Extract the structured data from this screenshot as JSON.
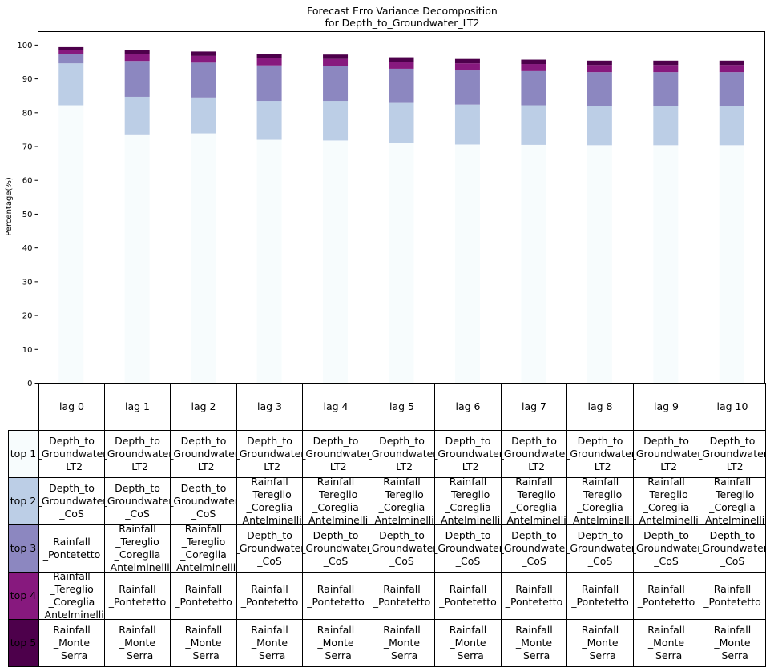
{
  "chart_data": {
    "type": "bar",
    "stacked": true,
    "title": "Forecast Erro Variance Decomposition\nfor Depth_to_Groundwater_LT2",
    "xlabel": "",
    "ylabel": "Percentage(%)",
    "ylim": [
      0,
      104
    ],
    "yticks": [
      0,
      10,
      20,
      30,
      40,
      50,
      60,
      70,
      80,
      90,
      100
    ],
    "grid": false,
    "categories": [
      "lag 0",
      "lag 1",
      "lag 2",
      "lag 3",
      "lag 4",
      "lag 5",
      "lag 6",
      "lag 7",
      "lag 8",
      "lag 9",
      "lag 10"
    ],
    "series": [
      {
        "name": "top 1",
        "color": "#f7fcfd",
        "values": [
          82.2,
          73.6,
          73.9,
          72.0,
          71.8,
          71.1,
          70.6,
          70.5,
          70.4,
          70.4,
          70.4
        ]
      },
      {
        "name": "top 2",
        "color": "#bccee6",
        "values": [
          12.4,
          11.1,
          10.6,
          11.5,
          11.7,
          11.8,
          11.8,
          11.7,
          11.6,
          11.6,
          11.6
        ]
      },
      {
        "name": "top 3",
        "color": "#8c87c0",
        "values": [
          2.8,
          10.6,
          10.3,
          10.5,
          10.3,
          10.1,
          10.1,
          10.1,
          10.0,
          10.0,
          10.0
        ]
      },
      {
        "name": "top 4",
        "color": "#87197e",
        "values": [
          1.2,
          2.0,
          2.0,
          2.1,
          2.1,
          2.1,
          2.1,
          2.1,
          2.1,
          2.1,
          2.1
        ]
      },
      {
        "name": "top 5",
        "color": "#4d004b",
        "values": [
          0.8,
          1.2,
          1.3,
          1.3,
          1.3,
          1.3,
          1.3,
          1.3,
          1.3,
          1.3,
          1.3
        ]
      }
    ]
  },
  "table": {
    "row_labels": [
      "top 1",
      "top 2",
      "top 3",
      "top 4",
      "top 5"
    ],
    "rows": [
      [
        "Depth_to\n_Groundwater\n_LT2",
        "Depth_to\n_Groundwater\n_LT2",
        "Depth_to\n_Groundwater\n_LT2",
        "Depth_to\n_Groundwater\n_LT2",
        "Depth_to\n_Groundwater\n_LT2",
        "Depth_to\n_Groundwater\n_LT2",
        "Depth_to\n_Groundwater\n_LT2",
        "Depth_to\n_Groundwater\n_LT2",
        "Depth_to\n_Groundwater\n_LT2",
        "Depth_to\n_Groundwater\n_LT2",
        "Depth_to\n_Groundwater\n_LT2"
      ],
      [
        "Depth_to\n_Groundwater\n_CoS",
        "Depth_to\n_Groundwater\n_CoS",
        "Depth_to\n_Groundwater\n_CoS",
        "Rainfall\n_Tereglio\n_Coreglia\n_Antelminelli",
        "Rainfall\n_Tereglio\n_Coreglia\n_Antelminelli",
        "Rainfall\n_Tereglio\n_Coreglia\n_Antelminelli",
        "Rainfall\n_Tereglio\n_Coreglia\n_Antelminelli",
        "Rainfall\n_Tereglio\n_Coreglia\n_Antelminelli",
        "Rainfall\n_Tereglio\n_Coreglia\n_Antelminelli",
        "Rainfall\n_Tereglio\n_Coreglia\n_Antelminelli",
        "Rainfall\n_Tereglio\n_Coreglia\n_Antelminelli"
      ],
      [
        "Rainfall\n_Pontetetto",
        "Rainfall\n_Tereglio\n_Coreglia\n_Antelminelli",
        "Rainfall\n_Tereglio\n_Coreglia\n_Antelminelli",
        "Depth_to\n_Groundwater\n_CoS",
        "Depth_to\n_Groundwater\n_CoS",
        "Depth_to\n_Groundwater\n_CoS",
        "Depth_to\n_Groundwater\n_CoS",
        "Depth_to\n_Groundwater\n_CoS",
        "Depth_to\n_Groundwater\n_CoS",
        "Depth_to\n_Groundwater\n_CoS",
        "Depth_to\n_Groundwater\n_CoS"
      ],
      [
        "Rainfall\n_Tereglio\n_Coreglia\n_Antelminelli",
        "Rainfall\n_Pontetetto",
        "Rainfall\n_Pontetetto",
        "Rainfall\n_Pontetetto",
        "Rainfall\n_Pontetetto",
        "Rainfall\n_Pontetetto",
        "Rainfall\n_Pontetetto",
        "Rainfall\n_Pontetetto",
        "Rainfall\n_Pontetetto",
        "Rainfall\n_Pontetetto",
        "Rainfall\n_Pontetetto"
      ],
      [
        "Rainfall\n_Monte\n_Serra",
        "Rainfall\n_Monte\n_Serra",
        "Rainfall\n_Monte\n_Serra",
        "Rainfall\n_Monte\n_Serra",
        "Rainfall\n_Monte\n_Serra",
        "Rainfall\n_Monte\n_Serra",
        "Rainfall\n_Monte\n_Serra",
        "Rainfall\n_Monte\n_Serra",
        "Rainfall\n_Monte\n_Serra",
        "Rainfall\n_Monte\n_Serra",
        "Rainfall\n_Monte\n_Serra"
      ]
    ]
  }
}
